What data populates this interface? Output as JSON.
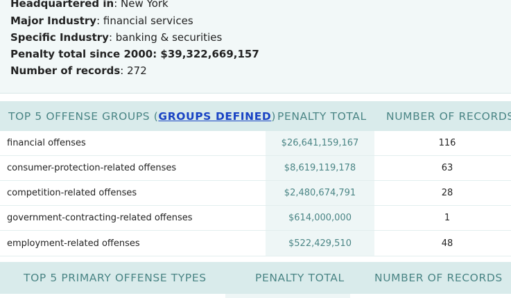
{
  "summary": {
    "hq_label": "Headquartered in",
    "hq_value": ": New York",
    "industry_label": "Major Industry",
    "industry_value": ": financial services",
    "specific_label": "Specific Industry",
    "specific_value": ": banking & securities",
    "penalty_label": "Penalty total since 2000",
    "penalty_value": ": $39,322,669,157",
    "records_label": "Number of records",
    "records_value": ": 272"
  },
  "offense_groups": {
    "heading_prefix": "TOP 5 OFFENSE GROUPS (",
    "heading_link": "GROUPS DEFINED",
    "heading_suffix": ")",
    "col_penalty": "PENALTY TOTAL",
    "col_records": "NUMBER OF RECORDS",
    "rows": [
      {
        "name": "financial offenses",
        "penalty": "$26,641,159,167",
        "records": "116"
      },
      {
        "name": "consumer-protection-related offenses",
        "penalty": "$8,619,119,178",
        "records": "63"
      },
      {
        "name": "competition-related offenses",
        "penalty": "$2,480,674,791",
        "records": "28"
      },
      {
        "name": "government-contracting-related offenses",
        "penalty": "$614,000,000",
        "records": "1"
      },
      {
        "name": "employment-related offenses",
        "penalty": "$522,429,510",
        "records": "48"
      }
    ]
  },
  "primary_types": {
    "heading": "TOP 5 PRIMARY OFFENSE TYPES",
    "col_penalty": "PENALTY TOTAL",
    "col_records": "NUMBER OF RECORDS"
  }
}
